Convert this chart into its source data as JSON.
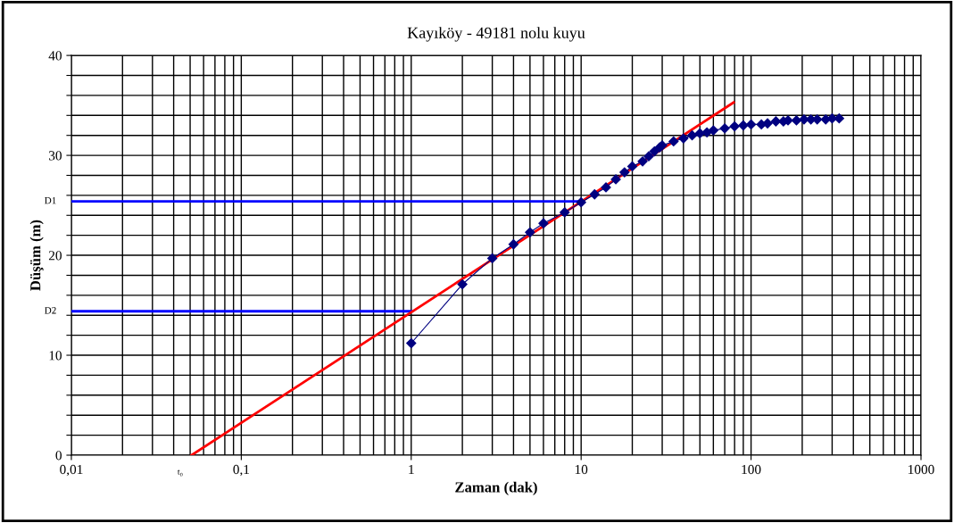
{
  "chart_data": {
    "type": "line",
    "title": "Kayıköy - 49181 nolu kuyu",
    "xlabel": "Zaman (dak)",
    "ylabel": "Düşüm (m)",
    "log": "x",
    "grid": true,
    "legend": false,
    "xlim": [
      0.01,
      1000
    ],
    "xticks": [
      {
        "value": 0.01,
        "label": "0,01"
      },
      {
        "value": 0.1,
        "label": "0,1"
      },
      1,
      10,
      100,
      1000
    ],
    "ylim": [
      0,
      40
    ],
    "yticks": [
      0,
      {
        "value": 2,
        "label": null
      },
      {
        "value": 4,
        "label": null
      },
      {
        "value": 6,
        "label": null
      },
      {
        "value": 8,
        "label": null
      },
      10,
      {
        "value": 12,
        "label": null
      },
      {
        "value": 14,
        "label": null
      },
      {
        "value": 16,
        "label": null
      },
      {
        "value": 18,
        "label": null
      },
      20,
      {
        "value": 22,
        "label": null
      },
      {
        "value": 24,
        "label": null
      },
      {
        "value": 26,
        "label": null
      },
      {
        "value": 28,
        "label": null
      },
      30,
      {
        "value": 32,
        "label": null
      },
      {
        "value": 34,
        "label": null
      },
      {
        "value": 36,
        "label": null
      },
      {
        "value": 38,
        "label": null
      },
      40
    ],
    "series": [
      {
        "name": "D1",
        "color": "#0000ff",
        "x": [
          0.01,
          10
        ],
        "values": [
          25.4,
          25.4
        ],
        "marker": "none"
      },
      {
        "name": "D2",
        "color": "#0000ff",
        "x": [
          0.01,
          1
        ],
        "values": [
          14.4,
          14.4
        ],
        "marker": "none"
      },
      {
        "color": "#000080",
        "marker": "diamond",
        "x": [
          1,
          2,
          3,
          4,
          5,
          6,
          8,
          10,
          12,
          14,
          16,
          18,
          20,
          23,
          25,
          27,
          29,
          30,
          35,
          40,
          45,
          50,
          55,
          60,
          70,
          80,
          90,
          100,
          115,
          125,
          140,
          155,
          165,
          185,
          205,
          225,
          245,
          275,
          300,
          330
        ],
        "values": [
          11.2,
          17.1,
          19.7,
          21.1,
          22.3,
          23.2,
          24.3,
          25.3,
          26.1,
          26.8,
          27.6,
          28.3,
          28.9,
          29.4,
          29.9,
          30.4,
          30.8,
          31.0,
          31.4,
          31.7,
          32.0,
          32.2,
          32.3,
          32.5,
          32.7,
          32.9,
          33.0,
          33.1,
          33.1,
          33.2,
          33.4,
          33.4,
          33.5,
          33.5,
          33.6,
          33.6,
          33.6,
          33.6,
          33.7,
          33.7
        ]
      },
      {
        "color": "#ff0000",
        "marker": "none",
        "x": [
          0.051,
          79
        ],
        "values": [
          0,
          35.3
        ]
      }
    ],
    "annotations": [
      {
        "text": "t₀",
        "x": 0.05,
        "y": 0
      }
    ]
  }
}
